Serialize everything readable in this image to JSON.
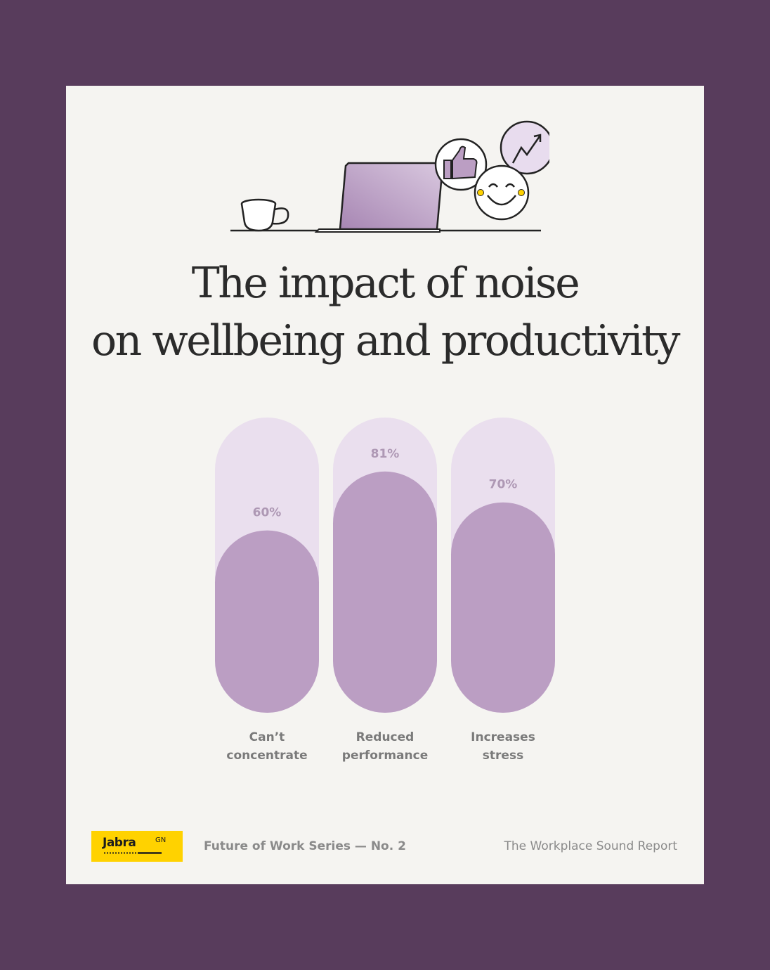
{
  "colors": {
    "background": "#583c5c",
    "card": "#f5f4f1",
    "bar_track": "#eadfee",
    "bar_fill": "#bb9ec3",
    "value_label": "#ae98b4",
    "category_label": "#7a7a7a",
    "brand_yellow": "#ffd200"
  },
  "illustration": {
    "icons": [
      "coffee-cup-icon",
      "laptop-icon",
      "thumbs-up-icon",
      "smiley-face-icon",
      "trend-up-icon"
    ]
  },
  "title": {
    "line1": "The impact of noise",
    "line2": "on wellbeing and productivity"
  },
  "chart_data": {
    "type": "bar",
    "categories": [
      "Can’t concentrate",
      "Reduced performance",
      "Increases stress"
    ],
    "category_lines": [
      [
        "Can’t",
        "concentrate"
      ],
      [
        "Reduced",
        "performance"
      ],
      [
        "Increases",
        "stress"
      ]
    ],
    "values": [
      60,
      81,
      70
    ],
    "value_labels": [
      "60%",
      "81%",
      "70%"
    ],
    "ylim": [
      0,
      100
    ],
    "title": "The impact of noise on wellbeing and productivity",
    "xlabel": "",
    "ylabel": ""
  },
  "footer": {
    "brand": "Jabra",
    "brand_suffix": "GN",
    "series": "Future of Work Series — No. 2",
    "report": "The Workplace Sound Report"
  }
}
